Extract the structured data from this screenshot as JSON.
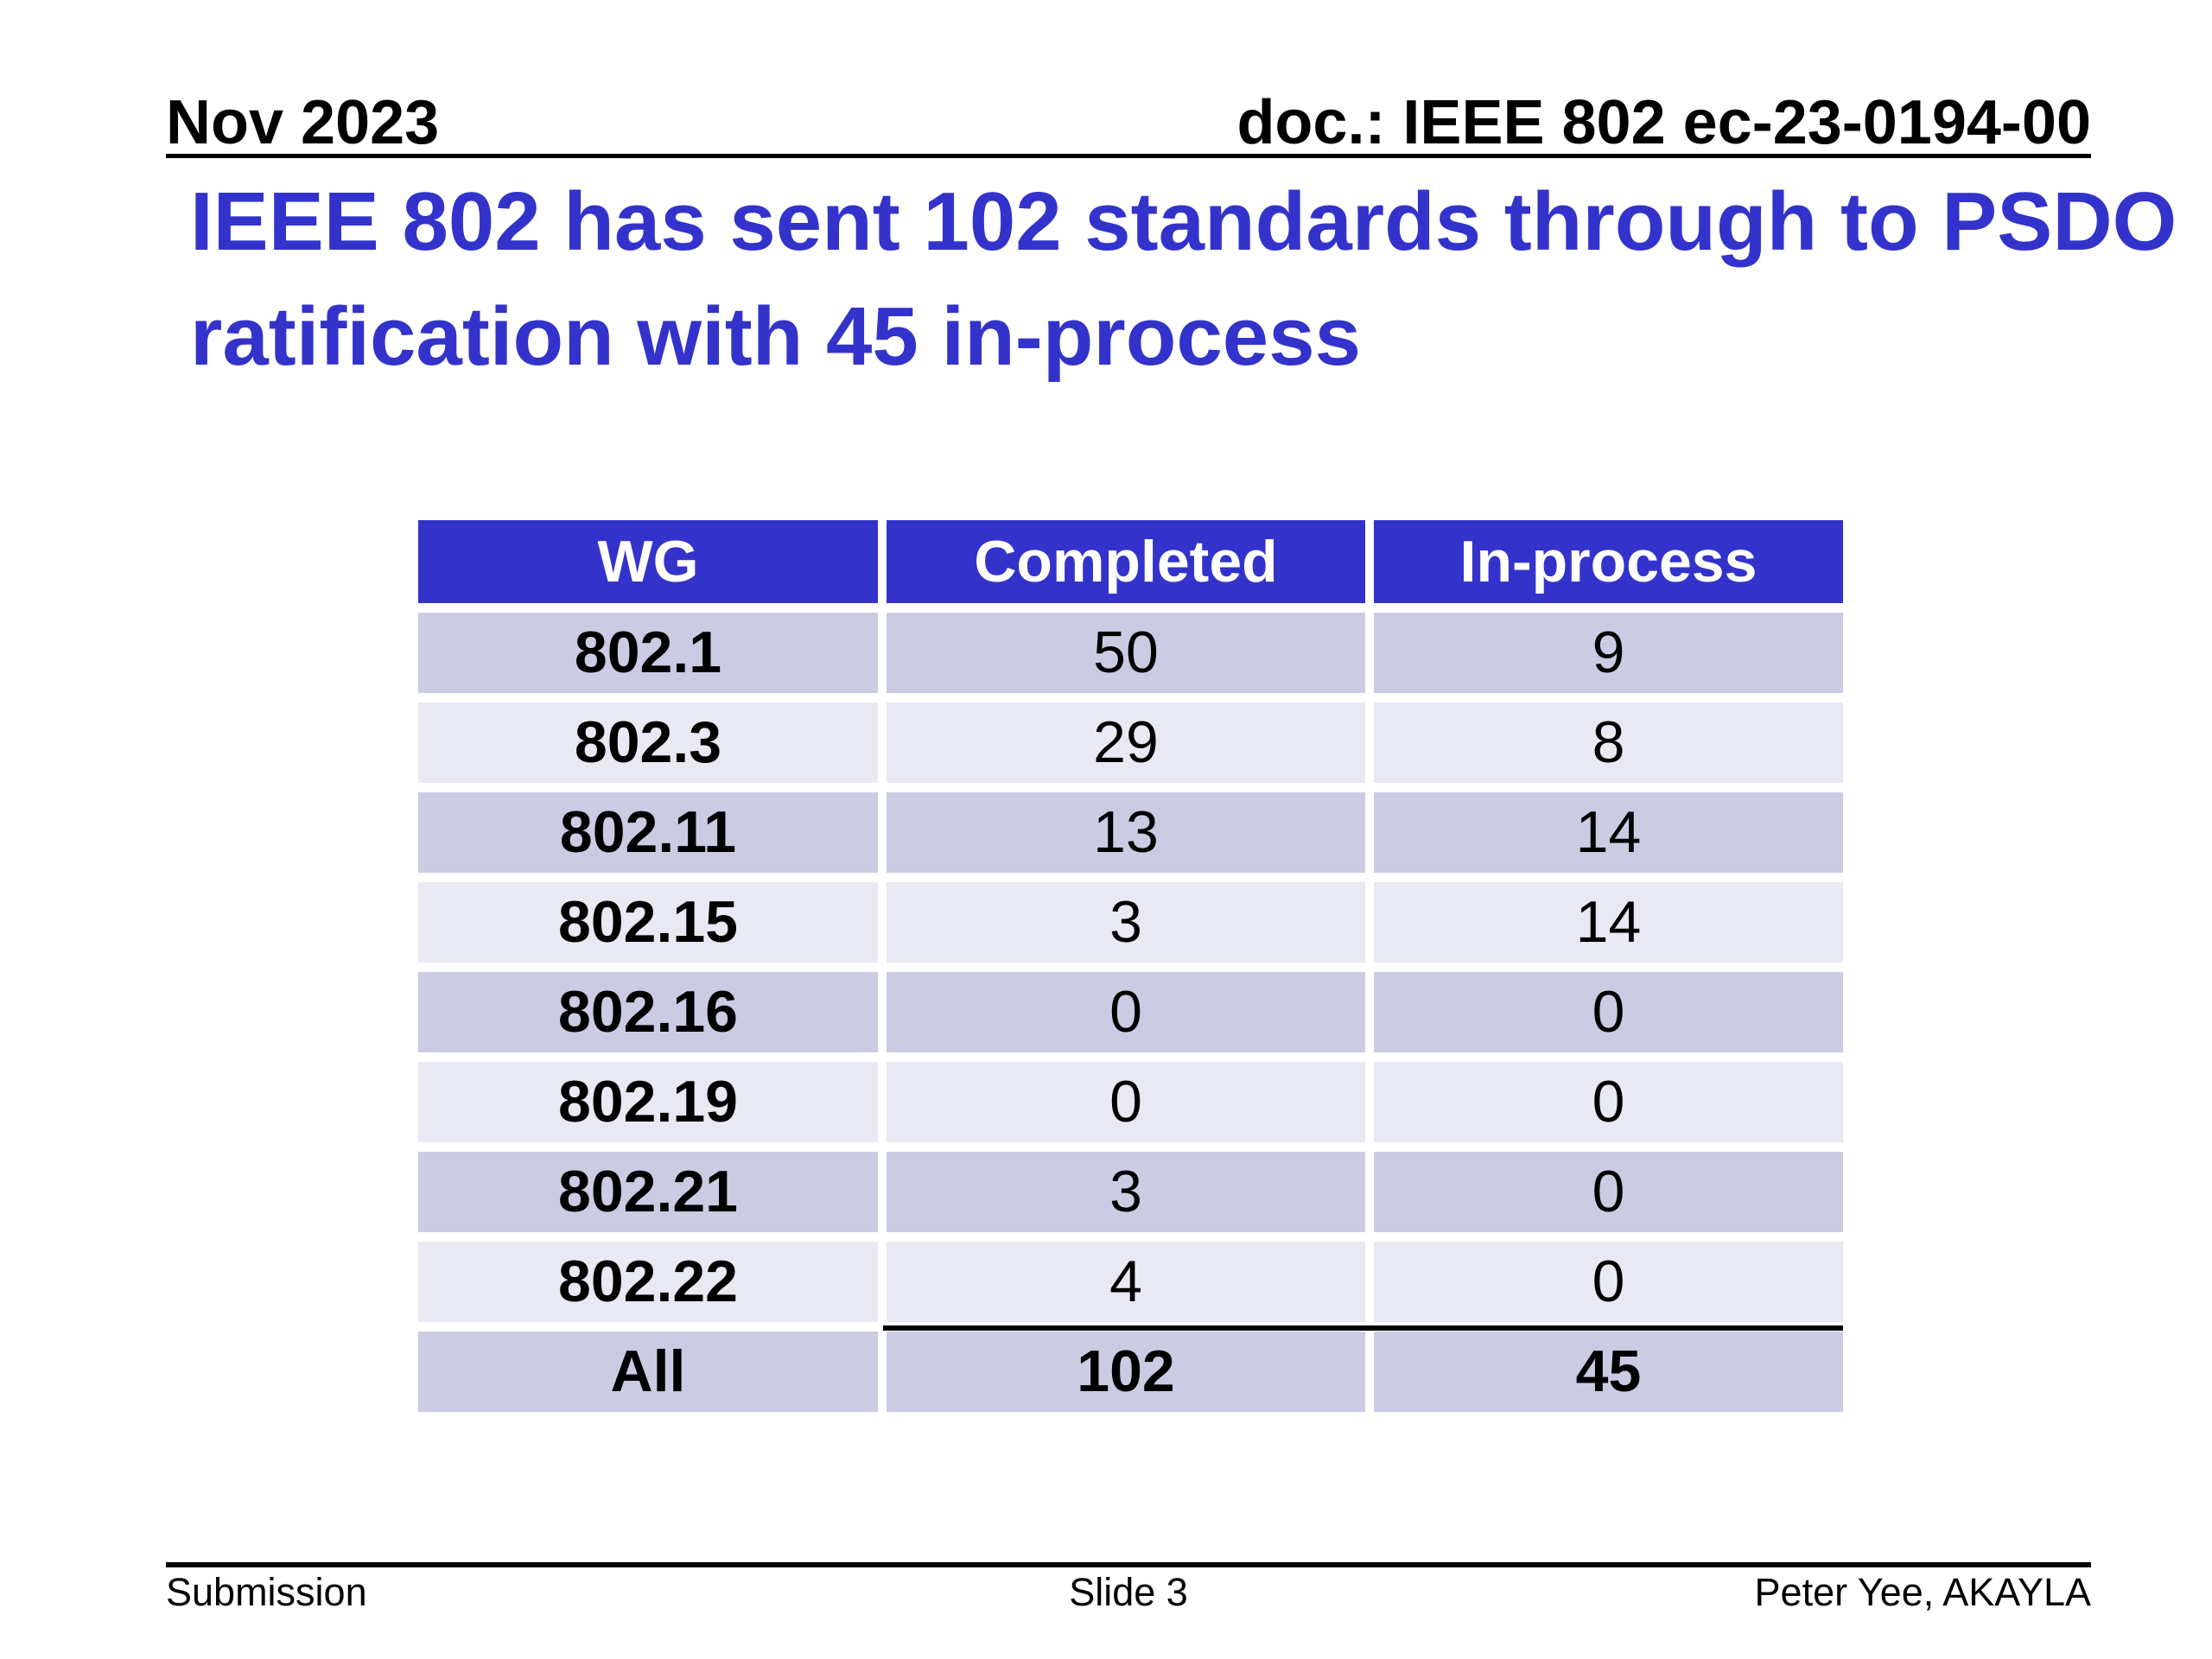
{
  "slide": {
    "header": {
      "date": "Nov 2023",
      "doc": "doc.: IEEE 802 ec-23-0194-00"
    },
    "title": {
      "line1": "IEEE 802 has sent 102 standards through to PSDO",
      "line2": "ratification with 45 in-process"
    },
    "footer": {
      "left": "Submission",
      "center": "Slide 3",
      "right": "Peter Yee, AKAYLA"
    }
  },
  "table": {
    "columns": [
      "WG",
      "Completed",
      "In-process"
    ],
    "rows": [
      [
        "802.1",
        "50",
        "9"
      ],
      [
        "802.3",
        "29",
        "8"
      ],
      [
        "802.11",
        "13",
        "14"
      ],
      [
        "802.15",
        "3",
        "14"
      ],
      [
        "802.16",
        "0",
        "0"
      ],
      [
        "802.19",
        "0",
        "0"
      ],
      [
        "802.21",
        "3",
        "0"
      ],
      [
        "802.22",
        "4",
        "0"
      ],
      [
        "All",
        "102",
        "45"
      ]
    ]
  },
  "chart_data": {
    "type": "table",
    "title": "IEEE 802 standards sent through to PSDO ratification",
    "columns": [
      "WG",
      "Completed",
      "In-process"
    ],
    "rows": [
      {
        "wg": "802.1",
        "completed": 50,
        "in_process": 9
      },
      {
        "wg": "802.3",
        "completed": 29,
        "in_process": 8
      },
      {
        "wg": "802.11",
        "completed": 13,
        "in_process": 14
      },
      {
        "wg": "802.15",
        "completed": 3,
        "in_process": 14
      },
      {
        "wg": "802.16",
        "completed": 0,
        "in_process": 0
      },
      {
        "wg": "802.19",
        "completed": 0,
        "in_process": 0
      },
      {
        "wg": "802.21",
        "completed": 3,
        "in_process": 0
      },
      {
        "wg": "802.22",
        "completed": 4,
        "in_process": 0
      },
      {
        "wg": "All",
        "completed": 102,
        "in_process": 45
      }
    ]
  },
  "colors": {
    "accent_blue": "#3333CC",
    "header_row_bg": "#3333CC",
    "row_dark": "#CBCBE3",
    "row_light": "#E9E9F3",
    "text": "#000000",
    "header_text": "#FFFFFF"
  }
}
